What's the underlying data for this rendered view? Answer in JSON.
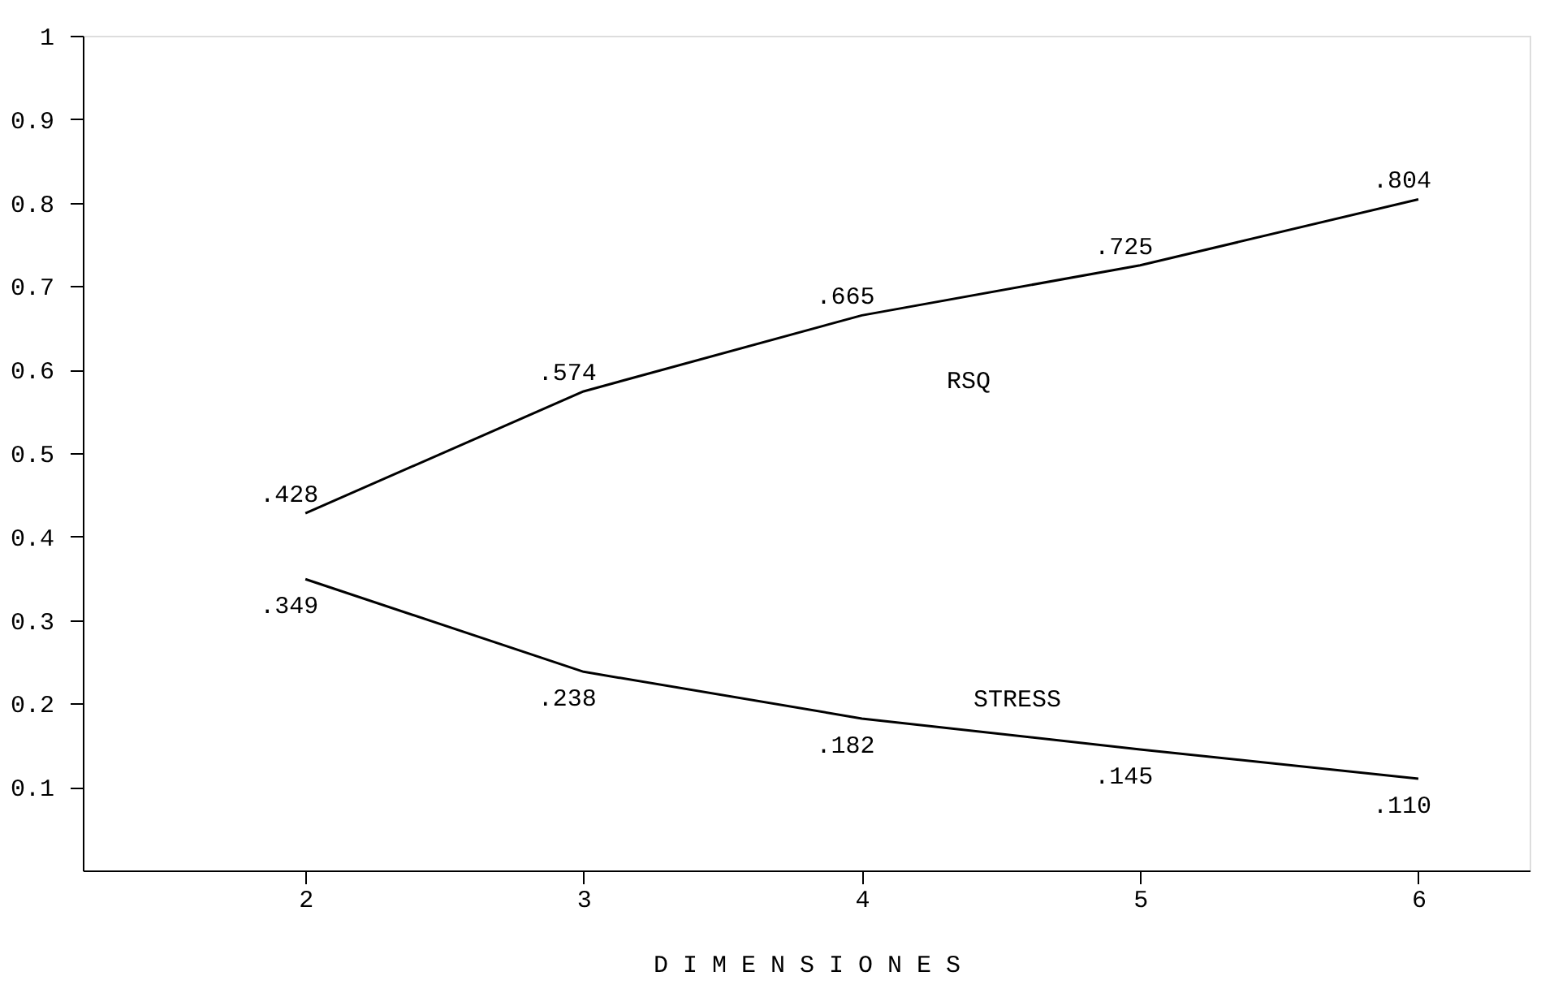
{
  "chart_data": {
    "type": "line",
    "xlabel": "D I M E N S I O N E S",
    "x": [
      2,
      3,
      4,
      5,
      6
    ],
    "series": [
      {
        "name": "RSQ",
        "color": "#000000",
        "values": [
          0.428,
          0.574,
          0.665,
          0.725,
          0.804
        ],
        "value_labels": [
          ".428",
          ".574",
          ".665",
          ".725",
          ".804"
        ]
      },
      {
        "name": "STRESS",
        "color": "#000000",
        "values": [
          0.349,
          0.238,
          0.182,
          0.145,
          0.11
        ],
        "value_labels": [
          ".349",
          ".238",
          ".182",
          ".145",
          ".110"
        ]
      }
    ],
    "xlim": [
      1.2,
      6.4
    ],
    "xticks": [
      2,
      3,
      4,
      5,
      6
    ],
    "ylim": [
      0,
      1
    ],
    "yticks": [
      0.1,
      0.2,
      0.3,
      0.4,
      0.5,
      0.6,
      0.7,
      0.8,
      0.9,
      1
    ],
    "grid": false,
    "marker": "none",
    "line_style": "solid"
  }
}
